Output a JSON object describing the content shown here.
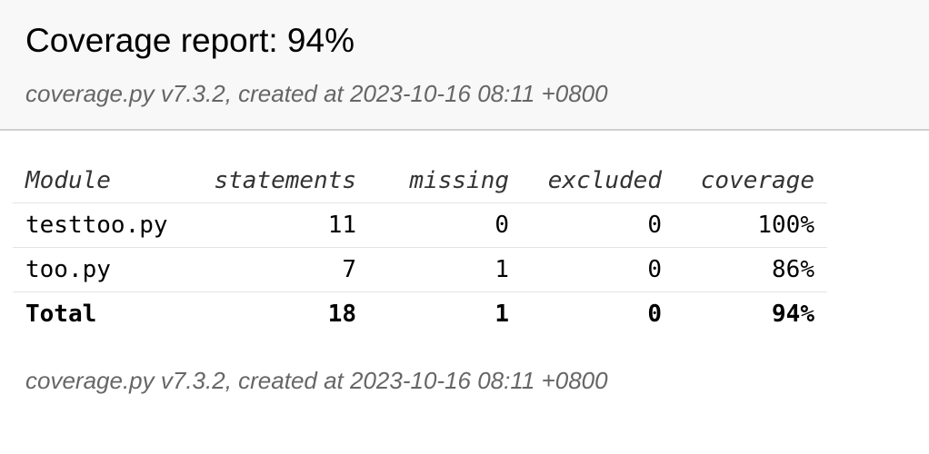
{
  "header": {
    "title": "Coverage report: 94%",
    "subtitle": "coverage.py v7.3.2, created at 2023-10-16 08:11 +0800"
  },
  "table": {
    "columns": [
      "Module",
      "statements",
      "missing",
      "excluded",
      "coverage"
    ],
    "rows": [
      [
        "testtoo.py",
        "11",
        "0",
        "0",
        "100%"
      ],
      [
        "too.py",
        "7",
        "1",
        "0",
        "86%"
      ]
    ],
    "total": [
      "Total",
      "18",
      "1",
      "0",
      "94%"
    ]
  },
  "footer": {
    "text": "coverage.py v7.3.2, created at 2023-10-16 08:11 +0800"
  }
}
